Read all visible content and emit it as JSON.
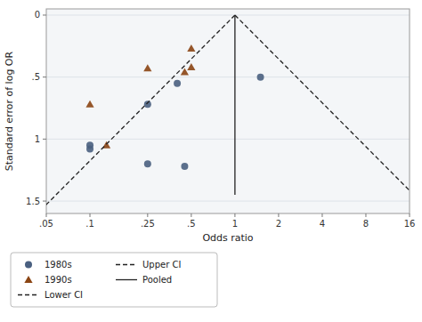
{
  "chart_data": {
    "type": "scatter",
    "xlabel": "Odds ratio",
    "ylabel": "Standard error of log OR",
    "log": "x",
    "grid": "y",
    "legend": "bottom",
    "xlim": [
      0.05,
      16
    ],
    "ylim": [
      1.6,
      -0.05
    ],
    "xticks": [
      {
        "value": 0.05,
        "label": ".05"
      },
      {
        "value": 0.1,
        "label": ".1"
      },
      {
        "value": 0.25,
        "label": ".25"
      },
      {
        "value": 0.5,
        "label": ".5"
      },
      1,
      2,
      4,
      8,
      16
    ],
    "yticks": [
      0,
      {
        "value": 0.5,
        "label": ".5"
      },
      1,
      1.5
    ],
    "series": [
      {
        "name": "1980s",
        "type": "scatter",
        "marker": "circle",
        "color": "#4a6080",
        "x": [
          0.1,
          0.1,
          0.25,
          0.25,
          0.4,
          0.45,
          1.5
        ],
        "values": [
          1.05,
          1.08,
          0.72,
          1.2,
          0.55,
          1.22,
          0.5
        ]
      },
      {
        "name": "1990s",
        "type": "scatter",
        "marker": "triangle",
        "color": "#8b4513",
        "x": [
          0.13,
          0.1,
          0.25,
          0.5,
          0.45,
          0.5
        ],
        "values": [
          1.05,
          0.72,
          0.43,
          0.42,
          0.46,
          0.27
        ]
      },
      {
        "name": "Lower CI",
        "type": "line",
        "line_style": "dashed",
        "color": "#222222",
        "x": [
          1.0,
          0.0434563
        ],
        "values": [
          0,
          1.6
        ]
      },
      {
        "name": "Upper CI",
        "type": "line",
        "line_style": "dashed",
        "color": "#222222",
        "x": [
          1.0,
          23.0116358
        ],
        "values": [
          0,
          1.6
        ]
      },
      {
        "name": "Pooled",
        "type": "line",
        "line_style": "solid",
        "color": "#222222",
        "x": [
          1.0,
          1.0
        ],
        "values": [
          0,
          1.45
        ]
      }
    ]
  }
}
